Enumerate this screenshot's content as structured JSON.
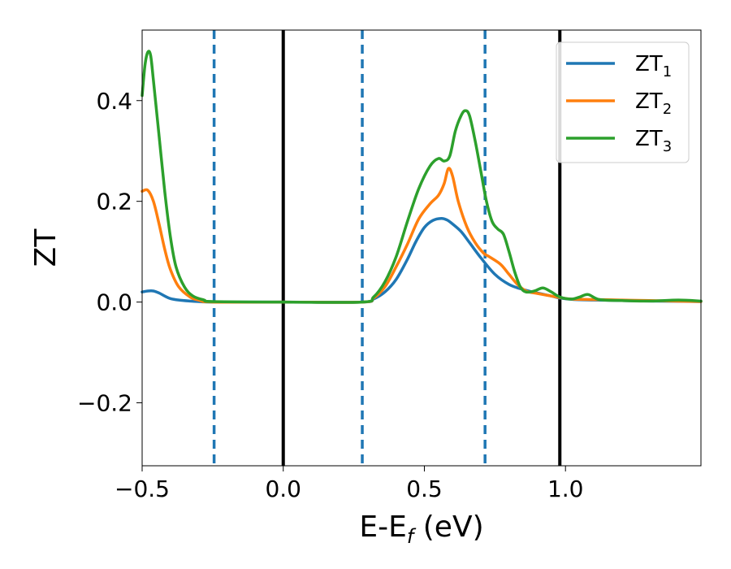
{
  "chart_data": {
    "type": "line",
    "title": "",
    "xlabel": "E-E",
    "xlabel_sub": "f",
    "xlabel_units": " (eV)",
    "ylabel": "ZT",
    "xlim": [
      -0.5,
      1.48
    ],
    "ylim": [
      -0.325,
      0.54
    ],
    "xticks": [
      -0.5,
      0.0,
      0.5,
      1.0
    ],
    "xtick_labels": [
      "−0.5",
      "0.0",
      "0.5",
      "1.0"
    ],
    "yticks": [
      -0.2,
      0.0,
      0.2,
      0.4
    ],
    "ytick_labels": [
      "−0.2",
      "0.0",
      "0.2",
      "0.4"
    ],
    "grid": false,
    "legend": "upper-right",
    "vlines_solid": [
      0.0,
      0.98
    ],
    "vlines_dashed": [
      -0.245,
      0.28,
      0.715
    ],
    "vline_solid_color": "#000000",
    "vline_dashed_color": "#1f77b4",
    "series": [
      {
        "name": "ZT",
        "sub": "1",
        "color": "#1f77b4",
        "x": [
          -0.5,
          -0.48,
          -0.46,
          -0.44,
          -0.42,
          -0.4,
          -0.37,
          -0.33,
          -0.3,
          -0.25,
          0.0,
          0.28,
          0.32,
          0.36,
          0.4,
          0.44,
          0.47,
          0.5,
          0.53,
          0.56,
          0.58,
          0.6,
          0.63,
          0.66,
          0.7,
          0.75,
          0.8,
          0.85,
          0.9,
          0.95,
          0.98,
          1.03,
          1.1,
          1.2,
          1.3,
          1.48
        ],
        "y": [
          0.02,
          0.022,
          0.022,
          0.018,
          0.012,
          0.007,
          0.004,
          0.002,
          0.001,
          0.0,
          0.0,
          0.0,
          0.006,
          0.02,
          0.045,
          0.085,
          0.12,
          0.148,
          0.162,
          0.166,
          0.163,
          0.155,
          0.14,
          0.118,
          0.088,
          0.055,
          0.035,
          0.025,
          0.018,
          0.012,
          0.008,
          0.005,
          0.004,
          0.003,
          0.002,
          0.001
        ]
      },
      {
        "name": "ZT",
        "sub": "2",
        "color": "#ff7f0e",
        "x": [
          -0.5,
          -0.48,
          -0.46,
          -0.44,
          -0.42,
          -0.4,
          -0.37,
          -0.33,
          -0.3,
          -0.25,
          0.0,
          0.28,
          0.32,
          0.36,
          0.4,
          0.44,
          0.48,
          0.52,
          0.55,
          0.57,
          0.585,
          0.6,
          0.62,
          0.65,
          0.68,
          0.71,
          0.73,
          0.77,
          0.8,
          0.83,
          0.86,
          0.9,
          0.95,
          0.98,
          1.02,
          1.1,
          1.2,
          1.3,
          1.48
        ],
        "y": [
          0.22,
          0.222,
          0.2,
          0.155,
          0.105,
          0.065,
          0.03,
          0.01,
          0.004,
          0.0,
          0.0,
          0.0,
          0.008,
          0.03,
          0.07,
          0.115,
          0.165,
          0.195,
          0.212,
          0.235,
          0.265,
          0.25,
          0.2,
          0.15,
          0.118,
          0.097,
          0.09,
          0.075,
          0.055,
          0.035,
          0.022,
          0.017,
          0.012,
          0.009,
          0.006,
          0.005,
          0.004,
          0.003,
          0.001
        ]
      },
      {
        "name": "ZT",
        "sub": "3",
        "color": "#2ca02c",
        "x": [
          -0.5,
          -0.49,
          -0.48,
          -0.47,
          -0.46,
          -0.44,
          -0.42,
          -0.4,
          -0.38,
          -0.35,
          -0.32,
          -0.28,
          -0.25,
          0.0,
          0.28,
          0.32,
          0.36,
          0.4,
          0.44,
          0.48,
          0.52,
          0.55,
          0.57,
          0.59,
          0.61,
          0.63,
          0.645,
          0.66,
          0.68,
          0.7,
          0.72,
          0.74,
          0.76,
          0.78,
          0.8,
          0.82,
          0.84,
          0.86,
          0.89,
          0.92,
          0.95,
          0.98,
          1.02,
          1.05,
          1.08,
          1.12,
          1.2,
          1.3,
          1.4,
          1.48
        ],
        "y": [
          0.41,
          0.47,
          0.496,
          0.49,
          0.44,
          0.33,
          0.22,
          0.13,
          0.07,
          0.03,
          0.012,
          0.004,
          0.001,
          0.0,
          0.0,
          0.01,
          0.04,
          0.09,
          0.16,
          0.225,
          0.27,
          0.285,
          0.28,
          0.29,
          0.34,
          0.37,
          0.38,
          0.37,
          0.32,
          0.26,
          0.2,
          0.16,
          0.145,
          0.135,
          0.1,
          0.06,
          0.03,
          0.02,
          0.022,
          0.028,
          0.02,
          0.01,
          0.006,
          0.01,
          0.015,
          0.005,
          0.003,
          0.002,
          0.004,
          0.002
        ]
      }
    ]
  }
}
